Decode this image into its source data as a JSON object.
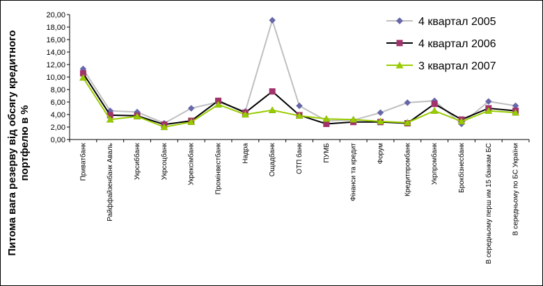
{
  "chart_data": {
    "type": "line",
    "ylabel_lines": [
      "Питома вага резерву від обсягу кредитного",
      "портфелю в %"
    ],
    "ylim": [
      0,
      20
    ],
    "yticks": [
      "0,00",
      "2,00",
      "4,00",
      "6,00",
      "8,00",
      "10,00",
      "12,00",
      "14,00",
      "16,00",
      "18,00",
      "20,00"
    ],
    "grid": false,
    "legend_position": "top-right",
    "categories": [
      "Приватбанк",
      "Райффайзенбанк Аваль",
      "Укрсиббанк",
      "Укрсоцбанк",
      "Укрексімбанк",
      "Промінвестбанк",
      "Надра",
      "Ощадбанк",
      "ОТП банк",
      "ПУМБ",
      "Фінанси та кредит",
      "Форум",
      "Кредитпромбанк",
      "Укрпромбанк",
      "Брокбізнесбанк",
      "В середньому перш им 15 банкам БС",
      "В середньому по БС України"
    ],
    "series": [
      {
        "name": "4 квартал 2005",
        "color": "#6666aa",
        "line_color": "#bfbfbf",
        "marker": "diamond",
        "values": [
          11.3,
          4.6,
          4.4,
          2.6,
          5.0,
          6.0,
          4.5,
          19.1,
          5.4,
          3.0,
          3.1,
          4.3,
          5.9,
          6.2,
          2.5,
          6.1,
          5.4
        ]
      },
      {
        "name": "4 квартал 2006",
        "color": "#a0336a",
        "line_color": "#000000",
        "marker": "square",
        "values": [
          10.6,
          3.9,
          3.8,
          2.4,
          3.0,
          6.2,
          4.3,
          7.7,
          3.9,
          2.5,
          2.8,
          2.8,
          2.6,
          5.7,
          3.2,
          5.0,
          4.6
        ]
      },
      {
        "name": "3 квартал 2007",
        "color": "#99cc00",
        "line_color": "#99cc00",
        "marker": "triangle",
        "values": [
          9.9,
          3.2,
          3.7,
          2.0,
          2.8,
          5.6,
          4.0,
          4.7,
          3.8,
          3.3,
          3.2,
          2.9,
          2.7,
          4.6,
          2.9,
          4.6,
          4.3
        ]
      }
    ]
  }
}
